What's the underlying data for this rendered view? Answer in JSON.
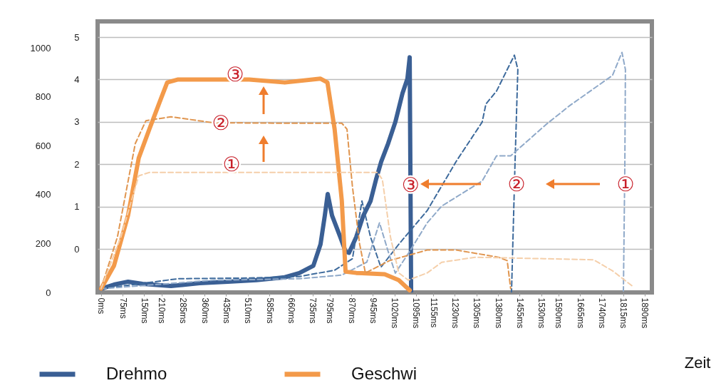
{
  "chart_data": {
    "type": "line",
    "xlabel": "Zeit",
    "legend": "bottom",
    "grid": "y",
    "xlim": [
      -12,
      1915
    ],
    "xticks": [
      {
        "value": 0,
        "label": "0ms"
      },
      {
        "value": 75,
        "label": "75ms"
      },
      {
        "value": 150,
        "label": "150ms"
      },
      {
        "value": 210,
        "label": "210ms"
      },
      {
        "value": 285,
        "label": "285ms"
      },
      {
        "value": 360,
        "label": "360ms"
      },
      {
        "value": 435,
        "label": "435ms"
      },
      {
        "value": 510,
        "label": "510ms"
      },
      {
        "value": 585,
        "label": "585ms"
      },
      {
        "value": 660,
        "label": "660ms"
      },
      {
        "value": 735,
        "label": "735ms"
      },
      {
        "value": 795,
        "label": "795ms"
      },
      {
        "value": 870,
        "label": "870ms"
      },
      {
        "value": 945,
        "label": "945ms"
      },
      {
        "value": 1020,
        "label": "1020ms"
      },
      {
        "value": 1095,
        "label": "1095ms"
      },
      {
        "value": 1155,
        "label": "1155ms"
      },
      {
        "value": 1230,
        "label": "1230ms"
      },
      {
        "value": 1305,
        "label": "1305ms"
      },
      {
        "value": 1380,
        "label": "1380ms"
      },
      {
        "value": 1455,
        "label": "1455ms"
      },
      {
        "value": 1530,
        "label": "1530ms"
      },
      {
        "value": 1590,
        "label": "1590ms"
      },
      {
        "value": 1665,
        "label": "1665ms"
      },
      {
        "value": 1740,
        "label": "1740ms"
      },
      {
        "value": 1815,
        "label": "1815ms"
      },
      {
        "value": 1890,
        "label": "1890ms"
      }
    ],
    "ylim": [
      0,
      1109
    ],
    "yticks": [
      0,
      200,
      400,
      600,
      800,
      1000
    ],
    "y2lim": [
      -1.02,
      5.37
    ],
    "y2ticks": [
      0,
      1,
      2,
      3,
      4,
      5
    ],
    "series": [
      {
        "name": "Drehmo",
        "color": "#3a5f94",
        "line_style": "solid",
        "x": [
          0,
          45,
          94,
          144,
          243,
          342,
          441,
          540,
          639,
          689,
          738,
          763,
          778,
          788,
          803,
          832,
          850,
          862,
          887,
          912,
          937,
          956,
          974,
          998,
          1023,
          1048,
          1065,
          1073,
          1078
        ],
        "values": [
          15,
          32,
          44,
          35,
          26,
          38,
          44,
          50,
          62,
          79,
          109,
          197,
          315,
          403,
          315,
          226,
          168,
          162,
          226,
          315,
          374,
          462,
          535,
          609,
          697,
          815,
          874,
          962,
          0
        ]
      },
      {
        "color": "#3d6a9c",
        "line_style": "dashed",
        "x": [
          0,
          268,
          515,
          689,
          812,
          874,
          907,
          937,
          973,
          1035,
          1134,
          1234,
          1325,
          1338,
          1375,
          1437,
          1449,
          1439,
          1427
        ],
        "values": [
          15,
          56,
          59,
          65,
          91,
          138,
          374,
          226,
          103,
          197,
          335,
          535,
          697,
          771,
          824,
          971,
          912,
          521,
          0
        ]
      },
      {
        "color": "#8fa9c9",
        "line_style": "dashed",
        "x": [
          0,
          391,
          689,
          837,
          924,
          968,
          998,
          1023,
          1073,
          1134,
          1184,
          1325,
          1375,
          1424,
          1548,
          1630,
          1778,
          1811,
          1823,
          1821,
          1816
        ],
        "values": [
          15,
          50,
          56,
          71,
          124,
          285,
          168,
          79,
          168,
          285,
          353,
          456,
          559,
          559,
          688,
          765,
          888,
          982,
          912,
          521,
          6
        ]
      },
      {
        "name": "Geschwi",
        "color": "#f39a4a",
        "line_style": "solid",
        "axis": "y2",
        "x": [
          0,
          45,
          94,
          131,
          168,
          206,
          230,
          268,
          391,
          515,
          639,
          763,
          787,
          812,
          837,
          850,
          887,
          986,
          1035,
          1073
        ],
        "values": [
          -0.93,
          -0.39,
          0.8,
          2.15,
          2.83,
          3.51,
          3.93,
          4.0,
          4.0,
          4.0,
          3.93,
          4.02,
          3.93,
          2.83,
          1.14,
          -0.53,
          -0.56,
          -0.59,
          -0.73,
          -0.97
        ]
      },
      {
        "color": "#e0954f",
        "line_style": "dashed",
        "axis": "y2",
        "x": [
          0,
          57,
          119,
          156,
          243,
          391,
          639,
          837,
          855,
          874,
          899,
          919,
          1003,
          1134,
          1234,
          1382,
          1412,
          1424
        ],
        "values": [
          -0.93,
          0.29,
          2.49,
          3.03,
          3.12,
          2.98,
          2.97,
          2.97,
          2.83,
          1.47,
          0.12,
          -0.56,
          -0.27,
          -0.02,
          -0.02,
          -0.19,
          -0.27,
          -0.93
        ]
      },
      {
        "color": "#f5cfaa",
        "line_style": "dashed",
        "axis": "y2",
        "x": [
          0,
          69,
          131,
          168,
          391,
          639,
          961,
          978,
          1006,
          1035,
          1068,
          1134,
          1184,
          1300,
          1712,
          1778,
          1853
        ],
        "values": [
          -0.93,
          0.29,
          1.73,
          1.81,
          1.81,
          1.81,
          1.81,
          1.64,
          0.29,
          -0.56,
          -0.73,
          -0.56,
          -0.31,
          -0.19,
          -0.25,
          -0.51,
          -0.9
        ]
      }
    ],
    "annotations": [
      "③",
      "②",
      "①",
      {
        "text": "③",
        "x": 1076,
        "y": 438
      },
      "②",
      "①"
    ]
  }
}
